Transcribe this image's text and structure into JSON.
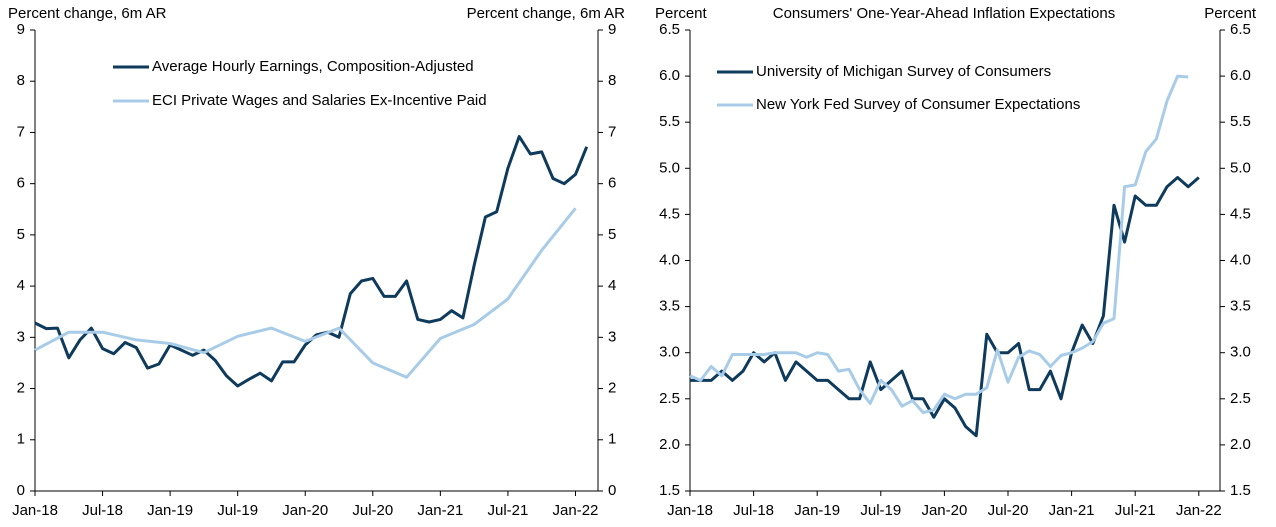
{
  "chart_data": [
    {
      "type": "line",
      "ylabel": "Percent change, 6m AR",
      "y2label": "Percent change, 6m AR",
      "xlim": [
        "2018-01",
        "2022-03"
      ],
      "xticks": [
        {
          "value": "2018-01",
          "label": "Jan-18"
        },
        {
          "value": "2018-07",
          "label": "Jul-18"
        },
        {
          "value": "2019-01",
          "label": "Jan-19"
        },
        {
          "value": "2019-07",
          "label": "Jul-19"
        },
        {
          "value": "2020-01",
          "label": "Jan-20"
        },
        {
          "value": "2020-07",
          "label": "Jul-20"
        },
        {
          "value": "2021-01",
          "label": "Jan-21"
        },
        {
          "value": "2021-07",
          "label": "Jul-21"
        },
        {
          "value": "2022-01",
          "label": "Jan-22"
        }
      ],
      "ylim": [
        0,
        9
      ],
      "yticks": [
        0,
        1,
        2,
        3,
        4,
        5,
        6,
        7,
        8,
        9
      ],
      "y2lim": [
        0,
        9
      ],
      "y2ticks": [
        0,
        1,
        2,
        3,
        4,
        5,
        6,
        7,
        8,
        9
      ],
      "legend": "top left",
      "series": [
        {
          "name": "Average Hourly Earnings, Composition-Adjusted",
          "color": "#0e3a5c",
          "x": [
            "2018-01",
            "2018-02",
            "2018-03",
            "2018-04",
            "2018-05",
            "2018-06",
            "2018-07",
            "2018-08",
            "2018-09",
            "2018-10",
            "2018-11",
            "2018-12",
            "2019-01",
            "2019-02",
            "2019-03",
            "2019-04",
            "2019-05",
            "2019-06",
            "2019-07",
            "2019-08",
            "2019-09",
            "2019-10",
            "2019-11",
            "2019-12",
            "2020-01",
            "2020-02",
            "2020-03",
            "2020-04",
            "2020-05",
            "2020-06",
            "2020-07",
            "2020-08",
            "2020-09",
            "2020-10",
            "2020-11",
            "2020-12",
            "2021-01",
            "2021-02",
            "2021-03",
            "2021-04",
            "2021-05",
            "2021-06",
            "2021-07",
            "2021-08",
            "2021-09",
            "2021-10",
            "2021-11",
            "2021-12",
            "2022-01",
            "2022-02"
          ],
          "values": [
            3.28,
            3.17,
            3.18,
            2.6,
            2.95,
            3.18,
            2.78,
            2.68,
            2.9,
            2.8,
            2.4,
            2.48,
            2.85,
            2.75,
            2.65,
            2.75,
            2.55,
            2.25,
            2.05,
            2.18,
            2.3,
            2.15,
            2.52,
            2.52,
            2.85,
            3.05,
            3.1,
            3.0,
            3.85,
            4.1,
            4.15,
            3.8,
            3.8,
            4.1,
            3.35,
            3.3,
            3.35,
            3.52,
            3.38,
            4.4,
            5.35,
            5.45,
            6.3,
            6.92,
            6.58,
            6.62,
            6.1,
            6.0,
            6.18,
            6.72
          ]
        },
        {
          "name": "ECI Private Wages and Salaries Ex-Incentive Paid",
          "color": "#a8cce8",
          "x": [
            "2018-01",
            "2018-04",
            "2018-07",
            "2018-10",
            "2019-01",
            "2019-04",
            "2019-07",
            "2019-10",
            "2020-01",
            "2020-04",
            "2020-07",
            "2020-10",
            "2021-01",
            "2021-04",
            "2021-07",
            "2021-10",
            "2022-01"
          ],
          "values": [
            2.75,
            3.1,
            3.1,
            2.95,
            2.88,
            2.7,
            3.02,
            3.18,
            2.92,
            3.18,
            2.5,
            2.22,
            2.98,
            3.25,
            3.75,
            4.7,
            5.52
          ]
        }
      ]
    },
    {
      "type": "line",
      "title": "Consumers' One-Year-Ahead Inflation Expectations",
      "ylabel": "Percent",
      "y2label": "Percent",
      "xlim": [
        "2018-01",
        "2022-03"
      ],
      "xticks": [
        {
          "value": "2018-01",
          "label": "Jan-18"
        },
        {
          "value": "2018-07",
          "label": "Jul-18"
        },
        {
          "value": "2019-01",
          "label": "Jan-19"
        },
        {
          "value": "2019-07",
          "label": "Jul-19"
        },
        {
          "value": "2020-01",
          "label": "Jan-20"
        },
        {
          "value": "2020-07",
          "label": "Jul-20"
        },
        {
          "value": "2021-01",
          "label": "Jan-21"
        },
        {
          "value": "2021-07",
          "label": "Jul-21"
        },
        {
          "value": "2022-01",
          "label": "Jan-22"
        }
      ],
      "ylim": [
        1.5,
        6.5
      ],
      "yticks": [
        1.5,
        {
          "value": 2,
          "label": "2.0"
        },
        2.5,
        {
          "value": 3,
          "label": "3.0"
        },
        3.5,
        {
          "value": 4,
          "label": "4.0"
        },
        4.5,
        {
          "value": 5,
          "label": "5.0"
        },
        5.5,
        {
          "value": 6,
          "label": "6.0"
        },
        6.5
      ],
      "y2lim": [
        1.5,
        6.5
      ],
      "y2ticks": [
        1.5,
        {
          "value": 2,
          "label": "2.0"
        },
        2.5,
        {
          "value": 3,
          "label": "3.0"
        },
        3.5,
        {
          "value": 4,
          "label": "4.0"
        },
        4.5,
        {
          "value": 5,
          "label": "5.0"
        },
        5.5,
        {
          "value": 6,
          "label": "6.0"
        },
        6.5
      ],
      "legend": "top left",
      "series": [
        {
          "name": "University of Michigan Survey of Consumers",
          "color": "#0e3a5c",
          "x": [
            "2018-01",
            "2018-02",
            "2018-03",
            "2018-04",
            "2018-05",
            "2018-06",
            "2018-07",
            "2018-08",
            "2018-09",
            "2018-10",
            "2018-11",
            "2018-12",
            "2019-01",
            "2019-02",
            "2019-03",
            "2019-04",
            "2019-05",
            "2019-06",
            "2019-07",
            "2019-08",
            "2019-09",
            "2019-10",
            "2019-11",
            "2019-12",
            "2020-01",
            "2020-02",
            "2020-03",
            "2020-04",
            "2020-05",
            "2020-06",
            "2020-07",
            "2020-08",
            "2020-09",
            "2020-10",
            "2020-11",
            "2020-12",
            "2021-01",
            "2021-02",
            "2021-03",
            "2021-04",
            "2021-05",
            "2021-06",
            "2021-07",
            "2021-08",
            "2021-09",
            "2021-10",
            "2021-11",
            "2021-12",
            "2022-01"
          ],
          "values": [
            2.7,
            2.7,
            2.7,
            2.8,
            2.7,
            2.8,
            3.0,
            2.9,
            3.0,
            2.7,
            2.9,
            2.8,
            2.7,
            2.7,
            2.6,
            2.5,
            2.5,
            2.9,
            2.6,
            2.7,
            2.8,
            2.5,
            2.5,
            2.3,
            2.5,
            2.4,
            2.2,
            2.1,
            3.2,
            3.0,
            3.0,
            3.1,
            2.6,
            2.6,
            2.8,
            2.5,
            3.0,
            3.3,
            3.1,
            3.4,
            4.6,
            4.2,
            4.7,
            4.6,
            4.6,
            4.8,
            4.9,
            4.8,
            4.9
          ]
        },
        {
          "name": "New York Fed Survey of Consumer Expectations",
          "color": "#a8cce8",
          "x": [
            "2018-01",
            "2018-02",
            "2018-03",
            "2018-04",
            "2018-05",
            "2018-06",
            "2018-07",
            "2018-08",
            "2018-09",
            "2018-10",
            "2018-11",
            "2018-12",
            "2019-01",
            "2019-02",
            "2019-03",
            "2019-04",
            "2019-05",
            "2019-06",
            "2019-07",
            "2019-08",
            "2019-09",
            "2019-10",
            "2019-11",
            "2019-12",
            "2020-01",
            "2020-02",
            "2020-03",
            "2020-04",
            "2020-05",
            "2020-06",
            "2020-07",
            "2020-08",
            "2020-09",
            "2020-10",
            "2020-11",
            "2020-12",
            "2021-01",
            "2021-02",
            "2021-03",
            "2021-04",
            "2021-05",
            "2021-06",
            "2021-07",
            "2021-08",
            "2021-09",
            "2021-10",
            "2021-11",
            "2021-12"
          ],
          "values": [
            2.75,
            2.7,
            2.85,
            2.75,
            2.98,
            2.98,
            2.98,
            2.98,
            3.0,
            3.0,
            3.0,
            2.95,
            3.0,
            2.98,
            2.8,
            2.82,
            2.6,
            2.45,
            2.7,
            2.6,
            2.42,
            2.48,
            2.35,
            2.38,
            2.55,
            2.5,
            2.55,
            2.55,
            2.62,
            3.03,
            2.68,
            2.95,
            3.02,
            2.98,
            2.85,
            2.97,
            3.0,
            3.05,
            3.12,
            3.32,
            3.37,
            4.8,
            4.82,
            5.18,
            5.32,
            5.73,
            6.0,
            5.99
          ]
        }
      ]
    }
  ]
}
